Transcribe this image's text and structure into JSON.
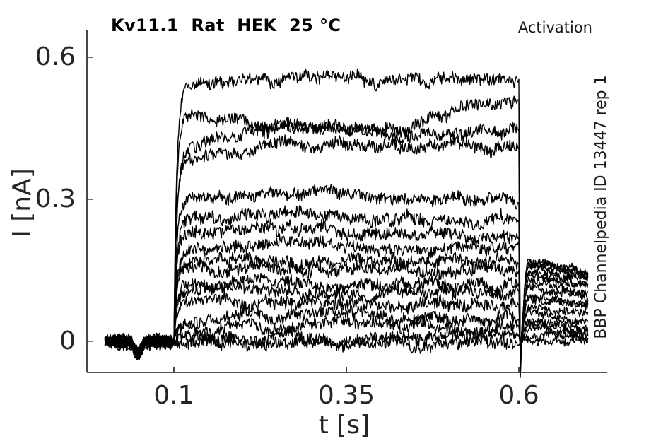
{
  "figure": {
    "title": "Kv11.1  Rat  HEK  25 °C",
    "corner_label": "Activation",
    "right_label": "BBP Channelpedia ID 13447 rep 1",
    "xlabel": "t [s]",
    "ylabel": "I [nA]",
    "background": "#ffffff",
    "text_color": "#262626",
    "spine_color": "#1a1a1a",
    "trace_color": "#000000"
  },
  "chart_data": {
    "type": "line",
    "title": "Kv11.1  Rat  HEK  25 °C",
    "xlabel": "t [s]",
    "ylabel": "I [nA]",
    "xlim": [
      -0.026,
      0.727
    ],
    "ylim": [
      -0.066,
      0.658
    ],
    "xticks": {
      "values": [
        0.1,
        0.35,
        0.6
      ],
      "labels": [
        "0.1",
        "0.35",
        "0.6"
      ]
    },
    "yticks": {
      "values": [
        0,
        0.3,
        0.6
      ],
      "labels": [
        "0",
        "0.3",
        "0.6"
      ]
    },
    "grid": false,
    "legend": null,
    "units": {
      "x": "s",
      "y": "nA"
    },
    "protocol": {
      "t_start": 0.0,
      "t_end": 0.7,
      "step_start": 0.1,
      "step_end": 0.6,
      "baseline_nA": 0.0,
      "artifact_dip": {
        "t0": 0.038,
        "t1": 0.058,
        "depth_nA": -0.024
      }
    },
    "noise": {
      "baseline": 0.009,
      "plateau": 0.012,
      "tail": 0.008,
      "dt": 0.001
    },
    "n_traces": 17,
    "traces": [
      {
        "name": "trace-01",
        "plateau_nA": [
          0.545,
          0.55,
          0.55,
          0.556
        ],
        "spike_nA": -0.075,
        "tail_peak_nA": 0.175,
        "tail_end_nA": 0.125
      },
      {
        "name": "trace-02",
        "plateau_nA": [
          0.47,
          0.445,
          0.45,
          0.515
        ],
        "spike_nA": -0.06,
        "tail_peak_nA": 0.17,
        "tail_end_nA": 0.12
      },
      {
        "name": "trace-03",
        "plateau_nA": [
          0.4,
          0.46,
          0.44,
          0.445
        ],
        "spike_nA": -0.05,
        "tail_peak_nA": 0.165,
        "tail_end_nA": 0.115
      },
      {
        "name": "trace-04",
        "plateau_nA": [
          0.385,
          0.42,
          0.41,
          0.405
        ],
        "spike_nA": -0.045,
        "tail_peak_nA": 0.16,
        "tail_end_nA": 0.11
      },
      {
        "name": "trace-05",
        "plateau_nA": [
          0.295,
          0.315,
          0.3,
          0.3
        ],
        "spike_nA": -0.04,
        "tail_peak_nA": 0.15,
        "tail_end_nA": 0.1
      },
      {
        "name": "trace-06",
        "plateau_nA": [
          0.26,
          0.265,
          0.26,
          0.255
        ],
        "spike_nA": -0.036,
        "tail_peak_nA": 0.14,
        "tail_end_nA": 0.092
      },
      {
        "name": "trace-07",
        "plateau_nA": [
          0.228,
          0.232,
          0.225,
          0.22
        ],
        "spike_nA": -0.032,
        "tail_peak_nA": 0.128,
        "tail_end_nA": 0.084
      },
      {
        "name": "trace-08",
        "plateau_nA": [
          0.198,
          0.202,
          0.198,
          0.195
        ],
        "spike_nA": -0.029,
        "tail_peak_nA": 0.115,
        "tail_end_nA": 0.075
      },
      {
        "name": "trace-09",
        "plateau_nA": [
          0.172,
          0.175,
          0.172,
          0.17
        ],
        "spike_nA": -0.026,
        "tail_peak_nA": 0.1,
        "tail_end_nA": 0.066
      },
      {
        "name": "trace-10",
        "plateau_nA": [
          0.15,
          0.152,
          0.15,
          0.148
        ],
        "spike_nA": -0.023,
        "tail_peak_nA": 0.088,
        "tail_end_nA": 0.057
      },
      {
        "name": "trace-11",
        "plateau_nA": [
          0.125,
          0.127,
          0.125,
          0.124
        ],
        "spike_nA": -0.02,
        "tail_peak_nA": 0.074,
        "tail_end_nA": 0.048
      },
      {
        "name": "trace-12",
        "plateau_nA": [
          0.101,
          0.102,
          0.101,
          0.1
        ],
        "spike_nA": -0.017,
        "tail_peak_nA": 0.06,
        "tail_end_nA": 0.04
      },
      {
        "name": "trace-13",
        "plateau_nA": [
          0.077,
          0.078,
          0.077,
          0.076
        ],
        "spike_nA": -0.015,
        "tail_peak_nA": 0.047,
        "tail_end_nA": 0.03
      },
      {
        "name": "trace-14",
        "plateau_nA": [
          0.054,
          0.056,
          0.055,
          0.054
        ],
        "spike_nA": -0.013,
        "tail_peak_nA": 0.035,
        "tail_end_nA": 0.022
      },
      {
        "name": "trace-15",
        "plateau_nA": [
          0.032,
          0.033,
          0.032,
          0.031
        ],
        "spike_nA": -0.011,
        "tail_peak_nA": 0.024,
        "tail_end_nA": 0.014
      },
      {
        "name": "trace-16",
        "plateau_nA": [
          0.012,
          0.013,
          0.012,
          0.012
        ],
        "spike_nA": -0.009,
        "tail_peak_nA": 0.012,
        "tail_end_nA": 0.006
      },
      {
        "name": "trace-17",
        "plateau_nA": [
          -0.009,
          -0.008,
          -0.009,
          -0.008
        ],
        "spike_nA": -0.007,
        "tail_peak_nA": 0.002,
        "tail_end_nA": -0.002
      }
    ]
  }
}
